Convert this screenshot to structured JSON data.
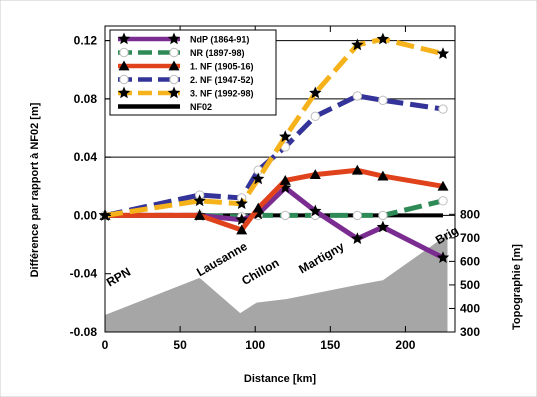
{
  "chart_data": {
    "type": "line",
    "xlabel": "Distance [km]",
    "ylabel": "Différence par rapport à NF02 [m]",
    "y2label": "Topographie [m]",
    "xlim": [
      0,
      233
    ],
    "ylim": [
      -0.08,
      0.13
    ],
    "y2lim": [
      300,
      1600
    ],
    "xticks": [
      "0",
      "50",
      "100",
      "150",
      "200"
    ],
    "xtick_values": [
      0,
      50,
      100,
      150,
      200
    ],
    "yticks": [
      "0.12",
      "0.08",
      "0.04",
      "0.00",
      "-0.04",
      "-0.08"
    ],
    "ytick_values": [
      0.12,
      0.08,
      0.04,
      0,
      -0.04,
      -0.08
    ],
    "y2ticks": [
      "300",
      "400",
      "500",
      "600",
      "700",
      "800"
    ],
    "y2tick_values": [
      300,
      400,
      500,
      600,
      700,
      800
    ],
    "gridlines_y": [
      0.12,
      0.08,
      0.04,
      0
    ],
    "legend_position": "top-left",
    "colors": {
      "topography": "#a6a6a6",
      "NdP": "#7b2c91",
      "NR": "#2e8b57",
      "NF1": "#e0431c",
      "NF2": "#333399",
      "NF3": "#f5b21a",
      "NF02": "#000000"
    },
    "stations": [
      {
        "label": "RPN",
        "x": 3,
        "y": -0.049
      },
      {
        "label": "Lausanne",
        "x": 63,
        "y": -0.042
      },
      {
        "label": "Chillon",
        "x": 93,
        "y": -0.048
      },
      {
        "label": "Martigny",
        "x": 131,
        "y": -0.04
      },
      {
        "label": "Brig",
        "x": 222,
        "y": -0.02
      }
    ],
    "topography": {
      "x": [
        0,
        63,
        90,
        101,
        121,
        168,
        185,
        225,
        228
      ],
      "y": [
        372,
        530,
        380,
        425,
        440,
        500,
        520,
        700,
        720
      ]
    },
    "series": [
      {
        "name": "NdP (1864-91)",
        "key": "NdP",
        "marker": "star",
        "dash": "solid",
        "x": [
          0,
          63,
          91,
          102,
          120,
          140,
          168,
          185,
          225
        ],
        "y": [
          0,
          0,
          -0.003,
          0.001,
          0.019,
          0.003,
          -0.016,
          -0.008,
          -0.029
        ]
      },
      {
        "name": "NR (1897-98)",
        "key": "NR",
        "marker": "circle",
        "dash": "dashed",
        "x": [
          0,
          63,
          91,
          102,
          120,
          140,
          168,
          185,
          225
        ],
        "y": [
          0,
          0,
          -0.001,
          0,
          0,
          0,
          0,
          0,
          0.01
        ]
      },
      {
        "name": "1. NF (1905-16)",
        "key": "NF1",
        "marker": "triangle",
        "dash": "solid",
        "x": [
          0,
          63,
          91,
          102,
          120,
          140,
          168,
          185,
          225
        ],
        "y": [
          0,
          0,
          -0.01,
          0.005,
          0.024,
          0.028,
          0.031,
          0.027,
          0.02
        ]
      },
      {
        "name": "2. NF (1947-52)",
        "key": "NF2",
        "marker": "circle",
        "dash": "dashed",
        "x": [
          0,
          63,
          91,
          102,
          120,
          140,
          168,
          185,
          225
        ],
        "y": [
          0,
          0.014,
          0.012,
          0.031,
          0.047,
          0.068,
          0.082,
          0.079,
          0.073
        ]
      },
      {
        "name": "3. NF (1992-98)",
        "key": "NF3",
        "marker": "star",
        "dash": "dashed",
        "x": [
          0,
          63,
          91,
          102,
          120,
          140,
          168,
          185,
          225
        ],
        "y": [
          0,
          0.01,
          0.008,
          0.025,
          0.054,
          0.084,
          0.117,
          0.121,
          0.111
        ]
      },
      {
        "name": "NF02",
        "key": "NF02",
        "marker": "none",
        "dash": "solid",
        "x": [
          0,
          225
        ],
        "y": [
          0,
          0
        ]
      }
    ]
  }
}
